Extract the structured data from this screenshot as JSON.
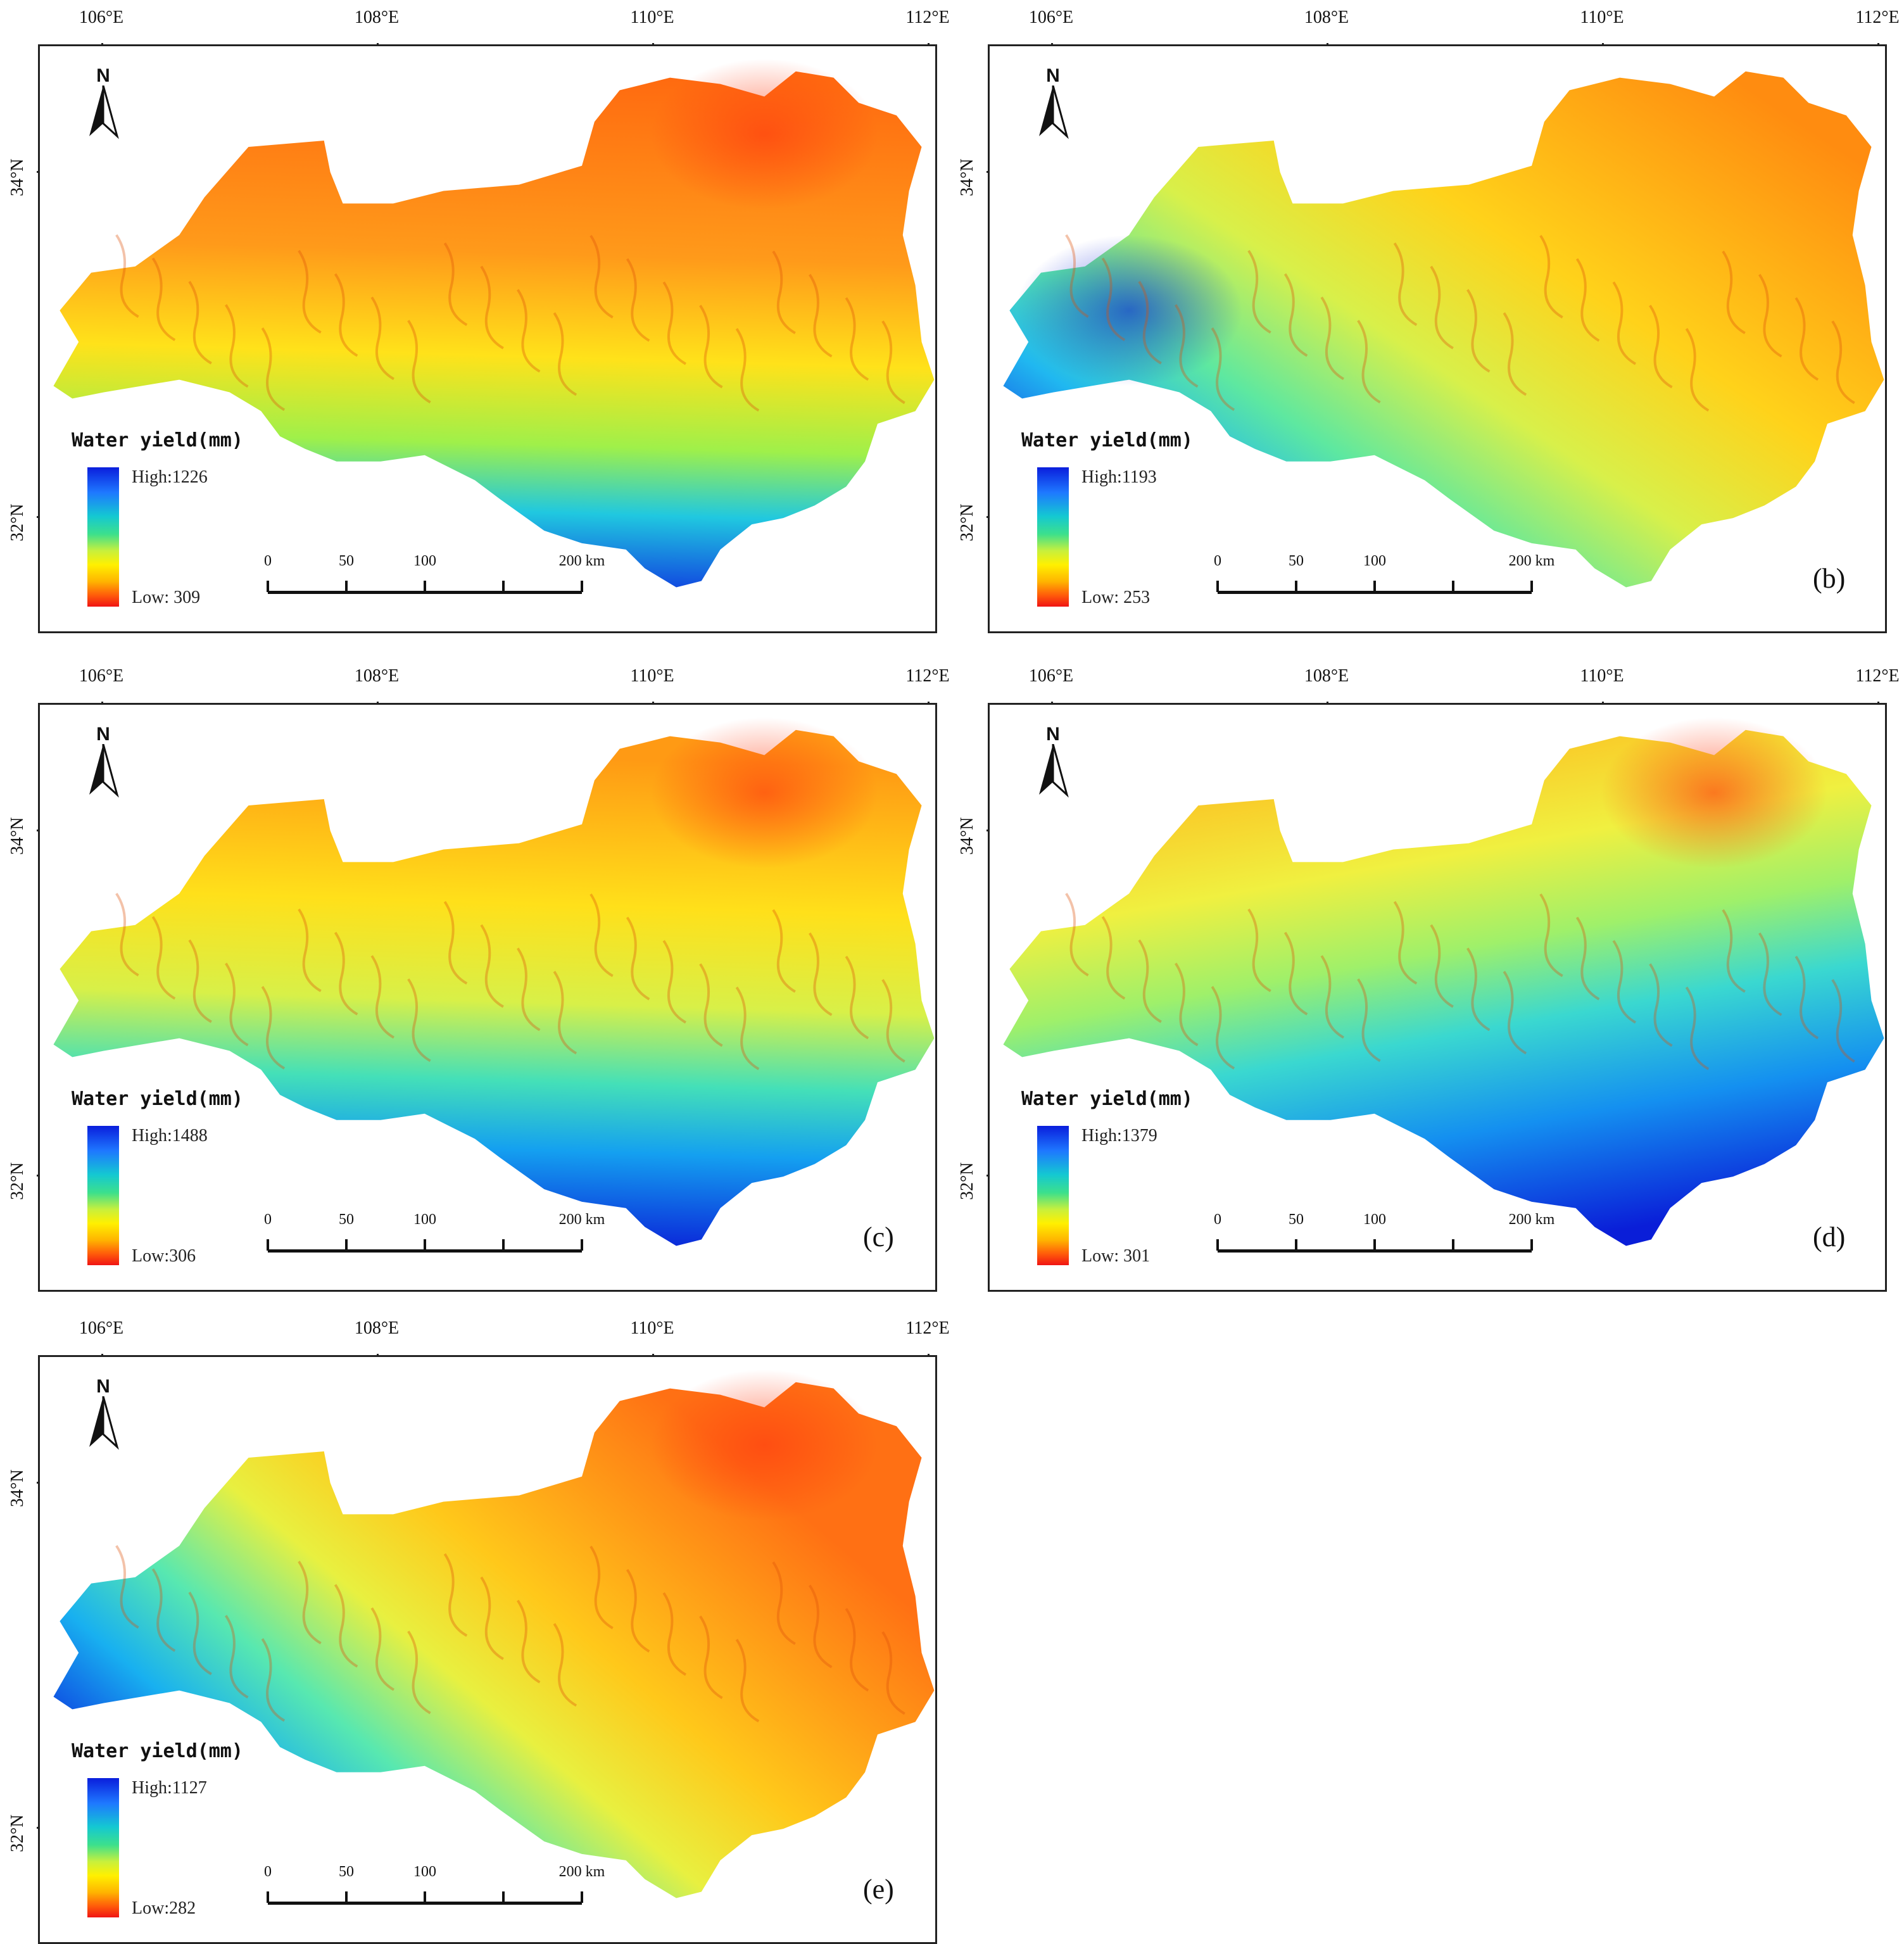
{
  "lon_labels": [
    "106°E",
    "108°E",
    "110°E",
    "112°E"
  ],
  "lat_labels": [
    "34°N",
    "32°N"
  ],
  "north_arrow_label": "N",
  "legend_title": "Water yield(mm)",
  "scale_labels": [
    "0",
    "50",
    "100",
    "200 km"
  ],
  "colors": {
    "high": "#0a1edc",
    "mid_cyan": "#14c8d2",
    "mid_yellow": "#fff000",
    "low": "#f01414"
  },
  "panels": [
    {
      "label": "",
      "high": "High:1226",
      "low": "Low: 309",
      "pattern": "mostly-low"
    },
    {
      "label": "(b)",
      "high": "High:1193",
      "low": "Low: 253",
      "pattern": "west-high-east-low"
    },
    {
      "label": "(c)",
      "high": "High:1488",
      "low": "Low:306",
      "pattern": "south-high"
    },
    {
      "label": "(d)",
      "high": "High:1379",
      "low": "Low: 301",
      "pattern": "mostly-high"
    },
    {
      "label": "(e)",
      "high": "High:1127",
      "low": "Low:282",
      "pattern": "east-low"
    }
  ]
}
